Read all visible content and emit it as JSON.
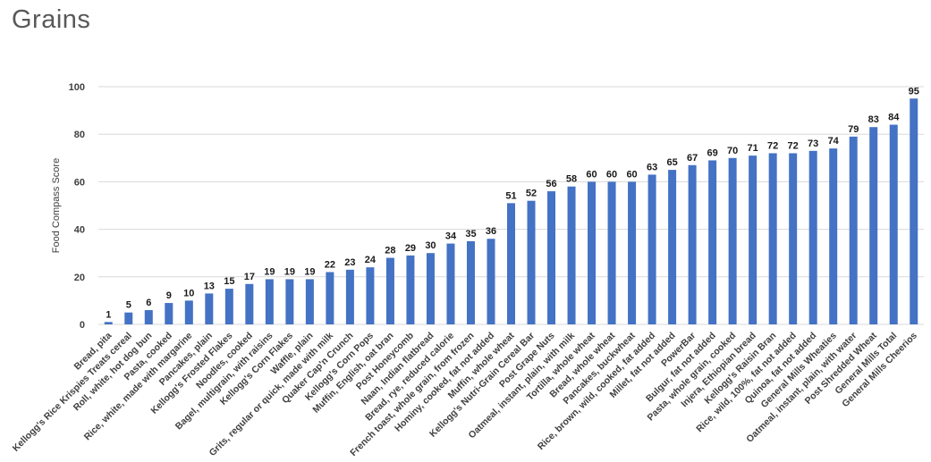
{
  "page": {
    "title": "Grains"
  },
  "colors": {
    "bar": "#4472C4",
    "gridline": "#D9D9D9",
    "axis_line": "#D9D9D9",
    "title_text": "#595959",
    "axis_text": "#404040",
    "value_label_text": "#1a1a1a",
    "category_text": "#404040"
  },
  "chart_data": {
    "type": "bar",
    "title": "Grains",
    "xlabel": "",
    "ylabel": "Food Compass Score",
    "ylim": [
      0,
      100
    ],
    "yticks": [
      0,
      20,
      40,
      60,
      80,
      100
    ],
    "grid": true,
    "legend": false,
    "categories": [
      "Bread, pita",
      "Kellogg's Rice Krispies Treats cereal",
      "Roll, white, hot dog bun",
      "Pasta, cooked",
      "Rice, white, made with margarine",
      "Pancakes, plain",
      "Kellogg's Frosted Flakes",
      "Noodles, cooked",
      "Bagel, multigrain, with raisins",
      "Kellogg's Corn Flakes",
      "Waffle, plain",
      "Grits, regular or quick, made with milk",
      "Quaker Cap'n Crunch",
      "Kellogg's Corn Pops",
      "Muffin, English, oat bran",
      "Post Honeycomb",
      "Naan, Indian flatbread",
      "Bread, rye, reduced calorie",
      "French toast, whole grain, from frozen",
      "Hominy, cooked, fat not added",
      "Muffin, whole wheat",
      "Kellogg's Nutri-Grain Cereal Bar",
      "Post Grape Nuts",
      "Oatmeal, instant, plain, with milk",
      "Tortilla, whole wheat",
      "Bread, whole wheat",
      "Pancakes, buckwheat",
      "Rice, brown, wild, cooked, fat added",
      "Millet, fat not added",
      "PowerBar",
      "Bulgur, fat not added",
      "Pasta, whole grain, cooked",
      "Injera, Ethiopian bread",
      "Kellogg's Raisin Bran",
      "Rice, wild, 100%, fat not added",
      "Quinoa, fat not added",
      "General Mills Wheaties",
      "Oatmeal, instant, plain, with water",
      "Post Shredded Wheat",
      "General Mills Total",
      "General Mills Cheerios"
    ],
    "values": [
      1,
      5,
      6,
      9,
      10,
      13,
      15,
      17,
      19,
      19,
      19,
      22,
      23,
      24,
      28,
      29,
      30,
      34,
      35,
      36,
      51,
      52,
      56,
      58,
      60,
      60,
      60,
      63,
      65,
      67,
      69,
      70,
      71,
      72,
      72,
      73,
      74,
      79,
      83,
      84,
      95
    ]
  }
}
